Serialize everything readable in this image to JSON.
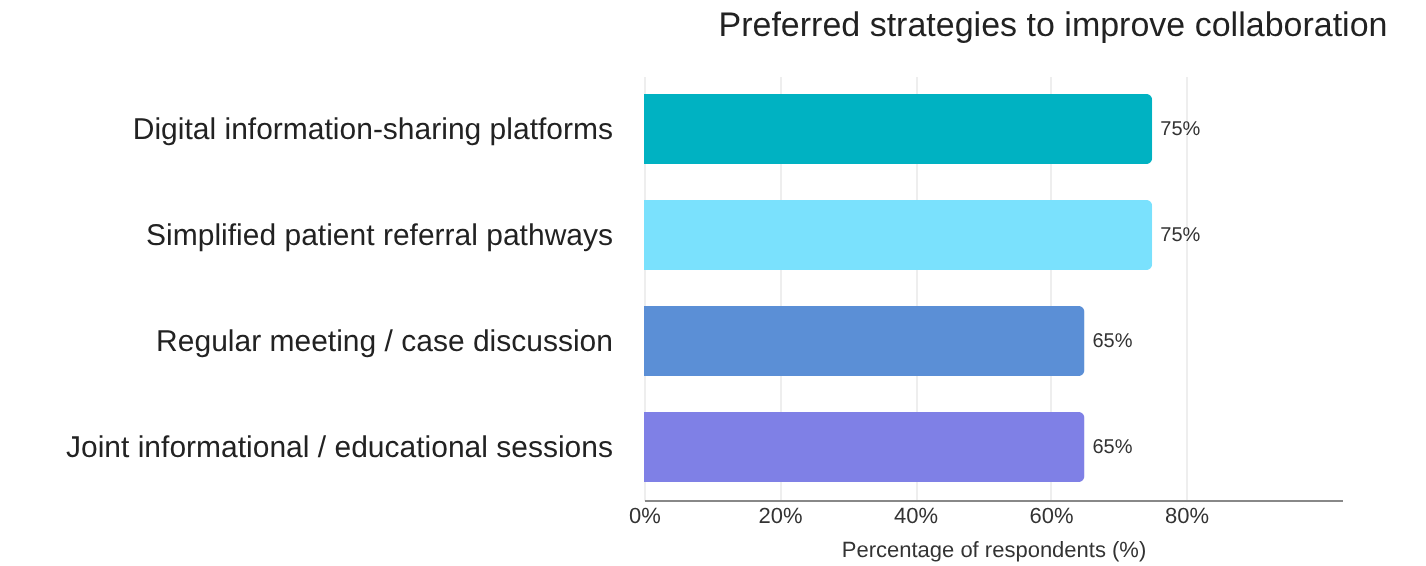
{
  "chart_data": {
    "type": "bar",
    "orientation": "horizontal",
    "title": "Preferred strategies to improve  collaboration",
    "xlabel": "Percentage of respondents (%)",
    "categories": [
      "Digital information-sharing platforms",
      "Simplified patient referral pathways",
      "Regular meeting / case discussion",
      "Joint informational / educational sessions"
    ],
    "values": [
      75,
      75,
      65,
      65
    ],
    "colors": [
      "#00b2c2",
      "#7ae1fd",
      "#5b8fd6",
      "#7f80e6"
    ],
    "value_labels": [
      "75%",
      "75%",
      "65%",
      "65%"
    ],
    "xlim": [
      0,
      103
    ],
    "xticks": [
      {
        "value": 0,
        "label": "0%"
      },
      {
        "value": 20,
        "label": "20%"
      },
      {
        "value": 40,
        "label": "40%"
      },
      {
        "value": 60,
        "label": "60%"
      },
      {
        "value": 80,
        "label": "80%"
      }
    ],
    "grid": "x"
  }
}
